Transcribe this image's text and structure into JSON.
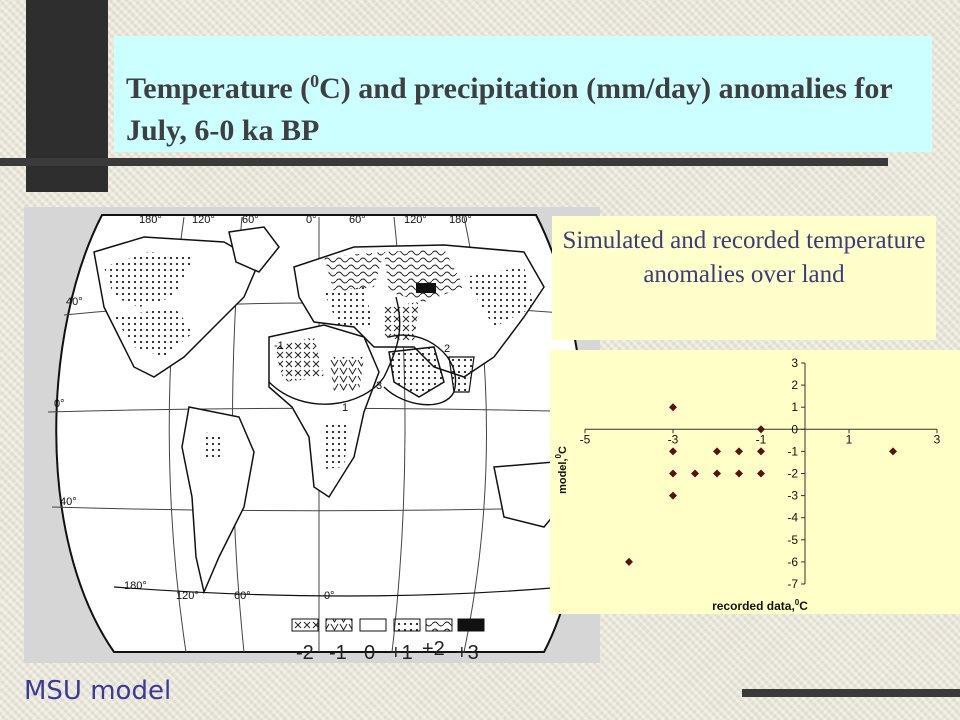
{
  "slide": {
    "title_part1": "Temperature (",
    "title_sup": "0",
    "title_part2": "C) and precipitation (mm/day) anomalies for July, 6-0 ka BP",
    "subtitle": "Simulated and recorded temperature anomalies over land",
    "footer": "MSU model"
  },
  "map": {
    "top_lon_labels": [
      "180°",
      "120°",
      "60°",
      "0°",
      "60°",
      "120°",
      "180°"
    ],
    "bottom_lon_labels": [
      "180°",
      "120°",
      "60°",
      "0°"
    ],
    "lat_labels": [
      "40°",
      "0°",
      "40°"
    ],
    "contour_labels": [
      "-1",
      "1",
      "3",
      "2"
    ],
    "legend_values": [
      "-2",
      "-1",
      "0",
      "+1",
      "+2",
      "+3"
    ]
  },
  "chart_data": {
    "type": "scatter",
    "xlabel_main": "recorded data,",
    "xlabel_sup": "0",
    "xlabel_unit": "C",
    "ylabel_main": "model,",
    "ylabel_sup": "0",
    "ylabel_unit": "C",
    "xlim": [
      -5,
      3
    ],
    "ylim": [
      -7,
      3
    ],
    "x_ticks": [
      -5,
      -3,
      -1,
      1,
      3
    ],
    "y_ticks": [
      3,
      2,
      1,
      0,
      -1,
      -2,
      -3,
      -4,
      -5,
      -6,
      -7
    ],
    "point_color": "#5a1010",
    "points": [
      [
        -3,
        1
      ],
      [
        -1,
        0
      ],
      [
        -3,
        -1
      ],
      [
        -2,
        -1
      ],
      [
        -1.5,
        -1
      ],
      [
        -1,
        -1
      ],
      [
        2,
        -1
      ],
      [
        -3,
        -2
      ],
      [
        -2.5,
        -2
      ],
      [
        -2,
        -2
      ],
      [
        -1.5,
        -2
      ],
      [
        -1,
        -2
      ],
      [
        -3,
        -3
      ],
      [
        -4,
        -6
      ]
    ]
  }
}
